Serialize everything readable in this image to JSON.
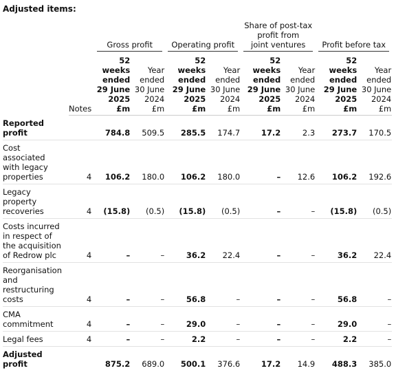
{
  "title": "Adjusted items:",
  "notes_header": "Notes",
  "groups": [
    {
      "title": [
        "Gross profit"
      ]
    },
    {
      "title": [
        "Operating profit"
      ]
    },
    {
      "title": [
        "Share of post-tax",
        "profit from",
        "joint ventures"
      ]
    },
    {
      "title": [
        "Profit before tax"
      ]
    }
  ],
  "columns": [
    {
      "header": [
        "52 weeks",
        "ended",
        "29 June",
        "2025",
        "£m"
      ]
    },
    {
      "header": [
        "Year",
        "ended",
        "30 June",
        "2024",
        "£m"
      ]
    },
    {
      "header": [
        "52 weeks",
        "ended",
        "29 June",
        "2025",
        "£m"
      ]
    },
    {
      "header": [
        "Year",
        "ended",
        "30 June",
        "2024",
        "£m"
      ]
    },
    {
      "header": [
        "52 weeks",
        "ended",
        "29 June",
        "2025",
        "£m"
      ]
    },
    {
      "header": [
        "Year",
        "ended",
        "30 June",
        "2024",
        "£m"
      ]
    },
    {
      "header": [
        "52 weeks",
        "ended",
        "29 June",
        "2025",
        "£m"
      ]
    },
    {
      "header": [
        "Year",
        "ended",
        "30 June",
        "2024",
        "£m"
      ]
    }
  ],
  "rows": [
    {
      "label": [
        "Reported",
        "profit"
      ],
      "values": [
        "784.8",
        "509.5",
        "285.5",
        "174.7",
        "17.2",
        "2.3",
        "273.7",
        "170.5"
      ]
    },
    {
      "label": [
        "Cost",
        "associated",
        "with legacy",
        "properties"
      ],
      "note": "4",
      "values": [
        "106.2",
        "180.0",
        "106.2",
        "180.0",
        "–",
        "12.6",
        "106.2",
        "192.6"
      ]
    },
    {
      "label": [
        "Legacy",
        "property",
        "recoveries"
      ],
      "note": "4",
      "values": [
        "(15.8)",
        "(0.5)",
        "(15.8)",
        "(0.5)",
        "–",
        "–",
        "(15.8)",
        "(0.5)"
      ]
    },
    {
      "label": [
        "Costs incurred",
        "in respect of",
        "the acquisition",
        "of Redrow plc"
      ],
      "note": "4",
      "values": [
        "–",
        "–",
        "36.2",
        "22.4",
        "–",
        "–",
        "36.2",
        "22.4"
      ]
    },
    {
      "label": [
        "Reorganisation",
        "and",
        "restructuring",
        "costs"
      ],
      "note": "4",
      "values": [
        "–",
        "–",
        "56.8",
        "–",
        "–",
        "–",
        "56.8",
        "–"
      ]
    },
    {
      "label": [
        "CMA",
        "commitment"
      ],
      "note": "4",
      "values": [
        "–",
        "–",
        "29.0",
        "–",
        "–",
        "–",
        "29.0",
        "–"
      ]
    },
    {
      "label": [
        "Legal fees"
      ],
      "note": "4",
      "values": [
        "–",
        "–",
        "2.2",
        "–",
        "–",
        "–",
        "2.2",
        "–"
      ]
    },
    {
      "label": [
        "Adjusted",
        "profit"
      ],
      "values": [
        "875.2",
        "689.0",
        "500.1",
        "376.6",
        "17.2",
        "14.9",
        "488.3",
        "385.0"
      ]
    }
  ]
}
